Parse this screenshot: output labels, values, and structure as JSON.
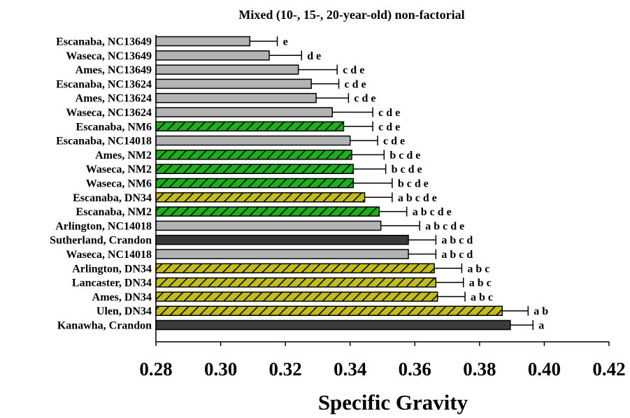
{
  "chart_data": {
    "type": "bar",
    "orientation": "horizontal",
    "title": "Mixed (10-, 15-, 20-year-old) non-factorial",
    "xlabel": "Specific Gravity",
    "ylabel": "",
    "xlim": [
      0.28,
      0.42
    ],
    "xticks": [
      "0.28",
      "0.30",
      "0.32",
      "0.34",
      "0.36",
      "0.38",
      "0.40",
      "0.42"
    ],
    "grid": false,
    "legend": "none",
    "colors": {
      "NC": "#b3b3b3",
      "NM": "#1ab11a",
      "DN34": "#c3bd16",
      "Crandon": "#3a3a3a",
      "hatch": "#000000"
    },
    "bars": [
      {
        "label": "Escanaba, NC13649",
        "value": 0.309,
        "error": 0.0085,
        "letters": "e",
        "group": "NC"
      },
      {
        "label": "Waseca, NC13649",
        "value": 0.315,
        "error": 0.01,
        "letters": "d e",
        "group": "NC"
      },
      {
        "label": "Ames, NC13649",
        "value": 0.324,
        "error": 0.012,
        "letters": "c d e",
        "group": "NC"
      },
      {
        "label": "Escanaba, NC13624",
        "value": 0.328,
        "error": 0.0085,
        "letters": "c d e",
        "group": "NC"
      },
      {
        "label": "Ames, NC13624",
        "value": 0.3295,
        "error": 0.01,
        "letters": "c d e",
        "group": "NC"
      },
      {
        "label": "Waseca, NC13624",
        "value": 0.3345,
        "error": 0.0125,
        "letters": "c d e",
        "group": "NC"
      },
      {
        "label": "Escanaba, NM6",
        "value": 0.338,
        "error": 0.009,
        "letters": "c d e",
        "group": "NM"
      },
      {
        "label": "Escanaba, NC14018",
        "value": 0.34,
        "error": 0.0085,
        "letters": "c d e",
        "group": "NC"
      },
      {
        "label": "Ames, NM2",
        "value": 0.3405,
        "error": 0.01,
        "letters": "b c d e",
        "group": "NM"
      },
      {
        "label": "Waseca, NM2",
        "value": 0.341,
        "error": 0.01,
        "letters": "b c d e",
        "group": "NM"
      },
      {
        "label": "Waseca, NM6",
        "value": 0.341,
        "error": 0.012,
        "letters": "b c d e",
        "group": "NM"
      },
      {
        "label": "Escanaba, DN34",
        "value": 0.3445,
        "error": 0.0085,
        "letters": "a b c d e",
        "group": "DN34"
      },
      {
        "label": "Escanaba, NM2",
        "value": 0.349,
        "error": 0.0085,
        "letters": "a b c d e",
        "group": "NM"
      },
      {
        "label": "Arlington, NC14018",
        "value": 0.3495,
        "error": 0.012,
        "letters": "a b c d e",
        "group": "NC"
      },
      {
        "label": "Sutherland, Crandon",
        "value": 0.358,
        "error": 0.0085,
        "letters": "a b c d",
        "group": "Crandon"
      },
      {
        "label": "Waseca, NC14018",
        "value": 0.358,
        "error": 0.0085,
        "letters": "a b c d",
        "group": "NC"
      },
      {
        "label": "Arlington, DN34",
        "value": 0.366,
        "error": 0.0085,
        "letters": "a b c",
        "group": "DN34"
      },
      {
        "label": "Lancaster, DN34",
        "value": 0.3665,
        "error": 0.0085,
        "letters": "a b c",
        "group": "DN34"
      },
      {
        "label": "Ames, DN34",
        "value": 0.367,
        "error": 0.0085,
        "letters": "a b c",
        "group": "DN34"
      },
      {
        "label": "Ulen, DN34",
        "value": 0.387,
        "error": 0.008,
        "letters": "a b",
        "group": "DN34"
      },
      {
        "label": "Kanawha, Crandon",
        "value": 0.3895,
        "error": 0.007,
        "letters": "a",
        "group": "Crandon"
      }
    ]
  }
}
